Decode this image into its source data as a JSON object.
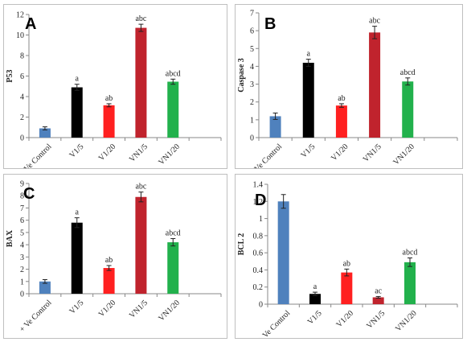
{
  "categories": [
    "+ Ve Control",
    "V1/5",
    "V1/20",
    "VN1/5",
    "VN1/20"
  ],
  "colors": [
    "#4f81bd",
    "#000000",
    "#ff2020",
    "#c0232d",
    "#22b14c"
  ],
  "chart_data": [
    {
      "type": "bar",
      "panel": "A",
      "ylabel": "P53",
      "ylim": [
        0,
        12
      ],
      "yticks": [
        0,
        2,
        4,
        6,
        8,
        10,
        12
      ],
      "values": [
        0.9,
        4.9,
        3.15,
        10.7,
        5.45
      ],
      "errors": [
        0.15,
        0.3,
        0.15,
        0.35,
        0.25
      ],
      "annotations": [
        "",
        "a",
        "ab",
        "abc",
        "abcd"
      ]
    },
    {
      "type": "bar",
      "panel": "B",
      "ylabel": "Caspase 3",
      "ylim": [
        0,
        7
      ],
      "yticks": [
        0,
        1,
        2,
        3,
        4,
        5,
        6,
        7
      ],
      "values": [
        1.2,
        4.2,
        1.8,
        5.9,
        3.15
      ],
      "errors": [
        0.18,
        0.2,
        0.1,
        0.35,
        0.2
      ],
      "annotations": [
        "",
        "a",
        "ab",
        "abc",
        "abcd"
      ]
    },
    {
      "type": "bar",
      "panel": "C",
      "ylabel": "BAX",
      "ylim": [
        0,
        9
      ],
      "yticks": [
        0,
        1,
        2,
        3,
        4,
        5,
        6,
        7,
        8,
        9
      ],
      "values": [
        1.0,
        5.8,
        2.1,
        7.9,
        4.2
      ],
      "errors": [
        0.15,
        0.4,
        0.2,
        0.4,
        0.3
      ],
      "annotations": [
        "",
        "a",
        "ab",
        "abc",
        "abcd"
      ]
    },
    {
      "type": "bar",
      "panel": "D",
      "ylabel": "BCL 2",
      "ylim": [
        0,
        1.4
      ],
      "yticks": [
        0,
        0.2,
        0.4,
        0.6,
        0.8,
        1,
        1.2,
        1.4
      ],
      "values": [
        1.2,
        0.12,
        0.37,
        0.08,
        0.49
      ],
      "errors": [
        0.08,
        0.02,
        0.04,
        0.01,
        0.05
      ],
      "annotations": [
        "",
        "a",
        "ab",
        "ac",
        "abcd"
      ]
    }
  ]
}
